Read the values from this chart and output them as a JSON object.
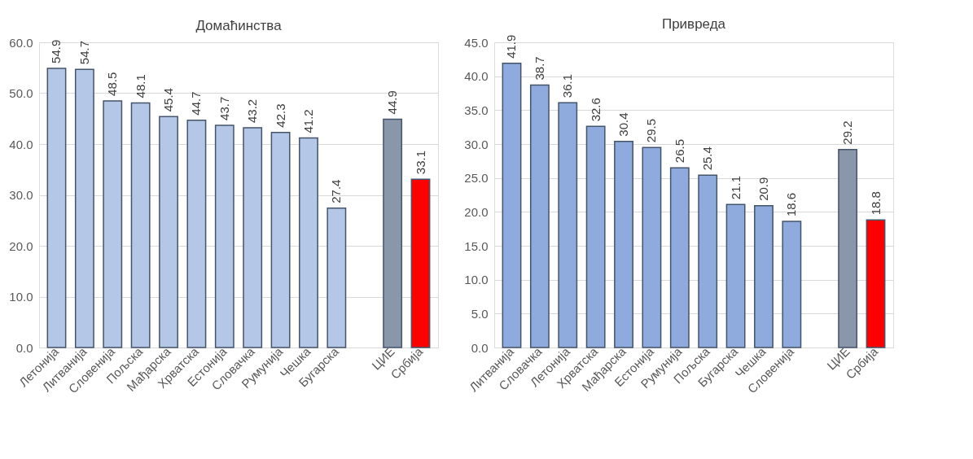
{
  "chart_data": [
    {
      "type": "bar",
      "title": "Домаћинства",
      "categories": [
        "Летонија",
        "Литванија",
        "Словенија",
        "Пољска",
        "Мађарска",
        "Хрватска",
        "Естонија",
        "Словачка",
        "Румунија",
        "Чешка",
        "Бугарска",
        null,
        "ЦИЕ",
        "Србија"
      ],
      "values": [
        54.9,
        54.7,
        48.5,
        48.1,
        45.4,
        44.7,
        43.7,
        43.2,
        42.3,
        41.2,
        27.4,
        null,
        44.9,
        33.1
      ],
      "colors": [
        "#b4c7e7",
        "#b4c7e7",
        "#b4c7e7",
        "#b4c7e7",
        "#b4c7e7",
        "#b4c7e7",
        "#b4c7e7",
        "#b4c7e7",
        "#b4c7e7",
        "#b4c7e7",
        "#b4c7e7",
        null,
        "#8a96aa",
        "#ff0000"
      ],
      "ylim": [
        0,
        60
      ],
      "yticks": [
        {
          "value": 0,
          "label": "0.0"
        },
        {
          "value": 10,
          "label": "10.0"
        },
        {
          "value": 20,
          "label": "20.0"
        },
        {
          "value": 30,
          "label": "30.0"
        },
        {
          "value": 40,
          "label": "40.0"
        },
        {
          "value": 50,
          "label": "50.0"
        },
        {
          "value": 60,
          "label": "60.0"
        }
      ],
      "grid": "y",
      "data_labels": true
    },
    {
      "type": "bar",
      "title": "Привреда",
      "categories": [
        "Литванија",
        "Словачка",
        "Летонија",
        "Хрватска",
        "Мађарска",
        "Естонија",
        "Румунија",
        "Пољска",
        "Бугарска",
        "Чешка",
        "Словенија",
        null,
        "ЦИЕ",
        "Србија"
      ],
      "values": [
        41.9,
        38.7,
        36.1,
        32.6,
        30.4,
        29.5,
        26.5,
        25.4,
        21.1,
        20.9,
        18.6,
        null,
        29.2,
        18.8
      ],
      "colors": [
        "#8faadc",
        "#8faadc",
        "#8faadc",
        "#8faadc",
        "#8faadc",
        "#8faadc",
        "#8faadc",
        "#8faadc",
        "#8faadc",
        "#8faadc",
        "#8faadc",
        null,
        "#8a96aa",
        "#ff0000"
      ],
      "ylim": [
        0,
        45
      ],
      "yticks": [
        {
          "value": 0,
          "label": "0.0"
        },
        {
          "value": 5,
          "label": "5.0"
        },
        {
          "value": 10,
          "label": "10.0"
        },
        {
          "value": 15,
          "label": "15.0"
        },
        {
          "value": 20,
          "label": "20.0"
        },
        {
          "value": 25,
          "label": "25.0"
        },
        {
          "value": 30,
          "label": "30.0"
        },
        {
          "value": 35,
          "label": "35.0"
        },
        {
          "value": 40,
          "label": "40.0"
        },
        {
          "value": 45,
          "label": "45.0"
        }
      ],
      "grid": "y",
      "data_labels": true
    }
  ]
}
